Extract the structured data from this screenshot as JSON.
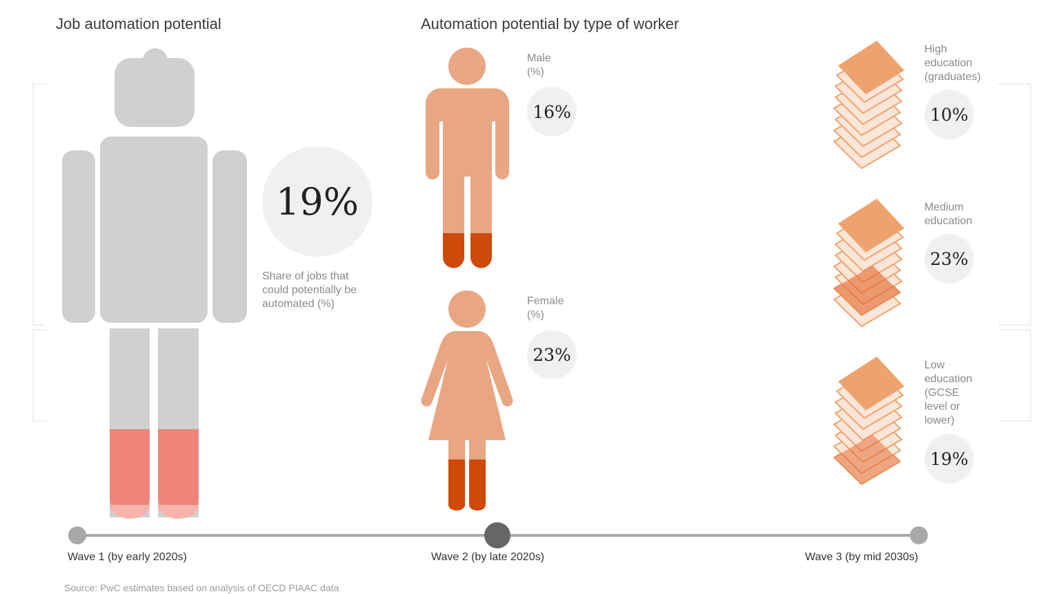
{
  "sections": {
    "left_title": "Job automation potential",
    "middle_title": "Automation potential by type of worker"
  },
  "overall": {
    "value": "19%",
    "caption": "Share of jobs that\ncould potentially be\nautomated (%)",
    "level": 0.19
  },
  "gender": {
    "male": {
      "label": "Male\n(%)",
      "value": "16%",
      "level": 0.16
    },
    "female": {
      "label": "Female\n(%)",
      "value": "23%",
      "level": 0.23
    }
  },
  "education": {
    "high": {
      "label": "High\neducation\n(graduates)",
      "value": "10%"
    },
    "medium": {
      "label": "Medium\neducation",
      "value": "23%"
    },
    "low": {
      "label": "Low\neducation\n(GCSE\nlevel or\nlower)",
      "value": "19%"
    }
  },
  "timeline": {
    "active_index": 1,
    "waves": [
      "Wave 1 (by early 2020s)",
      "Wave 2 (by late 2020s)",
      "Wave 3 (by mid 2030s)"
    ]
  },
  "source": "Source: PwC estimates based on analysis of OECD PIAAC data",
  "colors": {
    "robot_gray": "#d0d0d0",
    "robot_fill": "#ef857a",
    "person": "#e8a683",
    "person_fill": "#cf4a0a",
    "book": "#eea36f",
    "circle": "#f0f0f0",
    "timeline": "#a8a8a8",
    "timeline_active": "#666666"
  }
}
